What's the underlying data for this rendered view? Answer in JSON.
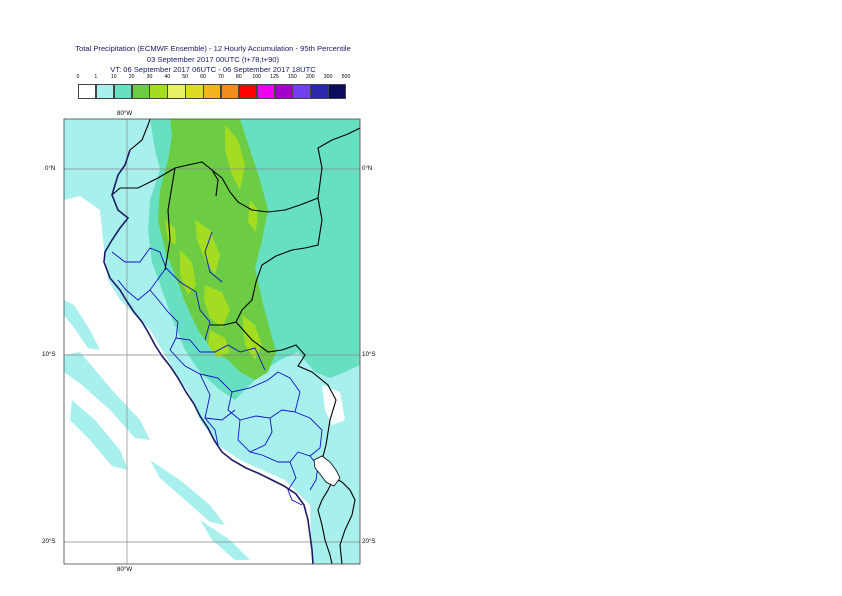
{
  "header": {
    "line1": "Total Precipitation (ECMWF Ensemble) - 12 Hourly Accumulation - 95th Percentile",
    "line2": "03 September 2017 00UTC (t+78,t+90)",
    "line3": "VT: 06 September 2017 06UTC - 06 September 2017 18UTC"
  },
  "legend": {
    "labels": [
      "0",
      "1",
      "10",
      "20",
      "30",
      "40",
      "50",
      "60",
      "70",
      "80",
      "100",
      "125",
      "150",
      "200",
      "300",
      "500"
    ],
    "colors": [
      "#ffffff",
      "#a8f0ee",
      "#66e0c0",
      "#6ccc44",
      "#a4dc22",
      "#e8f068",
      "#dcdc22",
      "#f0b420",
      "#f08c20",
      "#ff0000",
      "#f000f0",
      "#a000c8",
      "#7040f0",
      "#2828a8",
      "#0c0c5c"
    ]
  },
  "axes": {
    "lat_labels": [
      "0°N",
      "10°S",
      "20°S"
    ],
    "lon_label": "80°W"
  }
}
